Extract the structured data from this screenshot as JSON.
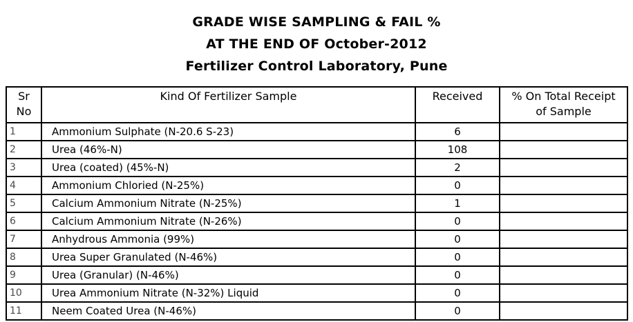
{
  "title": {
    "line1": "GRADE WISE SAMPLING & FAIL %",
    "line2": "AT THE END OF October-2012",
    "line3": "Fertilizer Control Laboratory, Pune"
  },
  "table": {
    "headers": {
      "sr_no": "Sr\nNo",
      "kind": "Kind Of Fertilizer Sample",
      "received": "Received",
      "percent": "% On Total Receipt\nof Sample"
    },
    "rows": [
      {
        "sr": "1",
        "kind": "Ammonium Sulphate (N-20.6 S-23)",
        "received": "6",
        "percent": ""
      },
      {
        "sr": "2",
        "kind": "Urea (46%-N)",
        "received": "108",
        "percent": ""
      },
      {
        "sr": "3",
        "kind": "Urea (coated) (45%-N)",
        "received": "2",
        "percent": ""
      },
      {
        "sr": "4",
        "kind": "Ammonium Chloried (N-25%)",
        "received": "0",
        "percent": ""
      },
      {
        "sr": "5",
        "kind": "Calcium Ammonium Nitrate (N-25%)",
        "received": "1",
        "percent": ""
      },
      {
        "sr": "6",
        "kind": "Calcium Ammonium Nitrate (N-26%)",
        "received": "0",
        "percent": ""
      },
      {
        "sr": "7",
        "kind": "Anhydrous Ammonia (99%)",
        "received": "0",
        "percent": ""
      },
      {
        "sr": "8",
        "kind": "Urea Super Granulated (N-46%)",
        "received": "0",
        "percent": ""
      },
      {
        "sr": "9",
        "kind": "Urea (Granular) (N-46%)",
        "received": "0",
        "percent": ""
      },
      {
        "sr": "10",
        "kind": "Urea Ammonium Nitrate (N-32%) Liquid",
        "received": "0",
        "percent": ""
      },
      {
        "sr": "11",
        "kind": "Neem Coated Urea (N-46%)",
        "received": "0",
        "percent": ""
      }
    ]
  },
  "colors": {
    "text": "#000000",
    "row_number_text": "#4a4a4a",
    "border": "#000000",
    "background": "#ffffff"
  }
}
